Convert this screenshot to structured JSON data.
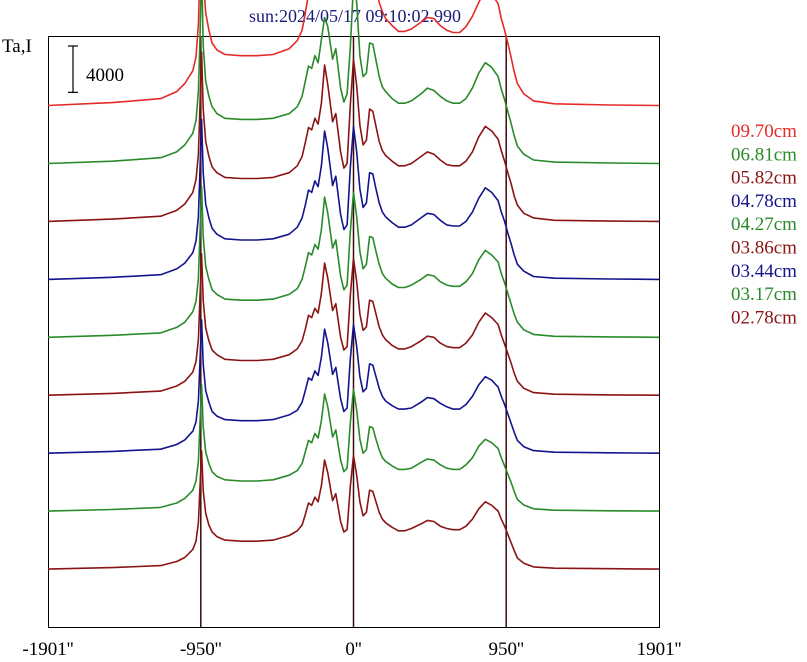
{
  "chart_data": {
    "type": "line",
    "title": "sun:2024/05/17 09:10:02.990",
    "ylabel": "Ta,I",
    "scale_bar_label": "4000",
    "scale_bar_value": 4000,
    "x_ticks": [
      {
        "value": -1901,
        "label": "-1901''"
      },
      {
        "value": -950,
        "label": "-950''"
      },
      {
        "value": 0,
        "label": "0''"
      },
      {
        "value": 950,
        "label": "950''"
      },
      {
        "value": 1901,
        "label": "1901''"
      }
    ],
    "xlim": [
      -1901,
      1901
    ],
    "ylim": [
      0,
      51000
    ],
    "vertical_markers": [
      -950,
      0,
      950
    ],
    "x": [
      -1901,
      -1500,
      -1200,
      -1100,
      -1050,
      -1000,
      -980,
      -965,
      -955,
      -945,
      -935,
      -920,
      -900,
      -880,
      -850,
      -800,
      -700,
      -600,
      -500,
      -400,
      -350,
      -320,
      -300,
      -280,
      -260,
      -240,
      -220,
      -200,
      -180,
      -160,
      -130,
      -110,
      -80,
      -60,
      -40,
      -20,
      0,
      20,
      40,
      60,
      80,
      100,
      120,
      140,
      160,
      180,
      200,
      240,
      280,
      320,
      360,
      420,
      460,
      500,
      540,
      580,
      620,
      660,
      700,
      740,
      780,
      820,
      860,
      900,
      920,
      940,
      960,
      980,
      1000,
      1020,
      1060,
      1120,
      1250,
      1600,
      1901
    ],
    "legend_position": "right",
    "series": [
      {
        "name": "09.70cm",
        "color": "#e52a2a",
        "offset": 45000,
        "values": [
          0,
          250,
          600,
          1200,
          1900,
          3000,
          4200,
          7000,
          12000,
          16000,
          11000,
          8000,
          6500,
          5400,
          4800,
          4400,
          4300,
          4300,
          4400,
          4900,
          5600,
          6500,
          8000,
          9600,
          9200,
          10600,
          9900,
          12200,
          13500,
          12400,
          10200,
          13000,
          10100,
          9800,
          10500,
          13000,
          17000,
          15500,
          11500,
          9200,
          9600,
          11800,
          11400,
          10200,
          8900,
          8100,
          7500,
          6900,
          6400,
          6400,
          6600,
          7200,
          7600,
          7500,
          6900,
          6500,
          6300,
          6300,
          6800,
          7700,
          8900,
          10000,
          9600,
          8800,
          7500,
          6500,
          5400,
          4200,
          2900,
          1900,
          1000,
          400,
          150,
          50,
          0
        ]
      },
      {
        "name": "06.81cm",
        "color": "#2a8a2a",
        "offset": 40000,
        "values": [
          0,
          200,
          500,
          1000,
          1600,
          2600,
          3700,
          6200,
          10800,
          17000,
          10200,
          7100,
          5800,
          4900,
          4300,
          3900,
          3800,
          3800,
          3900,
          4300,
          4900,
          5800,
          7100,
          8400,
          8200,
          9300,
          8700,
          10700,
          12600,
          11800,
          9000,
          9900,
          6500,
          5300,
          6000,
          10000,
          15500,
          13900,
          9300,
          7500,
          7800,
          10400,
          10300,
          8900,
          7500,
          6600,
          6200,
          5600,
          5200,
          5200,
          5400,
          6000,
          6500,
          6300,
          5800,
          5400,
          5200,
          5200,
          5600,
          6500,
          7800,
          8700,
          8300,
          7500,
          6400,
          5500,
          4500,
          3500,
          2400,
          1500,
          800,
          300,
          120,
          40,
          0
        ]
      },
      {
        "name": "05.82cm",
        "color": "#8a1414",
        "offset": 35000,
        "values": [
          0,
          200,
          450,
          950,
          1500,
          2500,
          3600,
          5800,
          10000,
          14600,
          9700,
          6900,
          5600,
          4700,
          4200,
          3800,
          3700,
          3700,
          3800,
          4200,
          4800,
          5600,
          6800,
          8100,
          7900,
          8900,
          8400,
          10200,
          13500,
          11800,
          8600,
          9300,
          6000,
          4600,
          5000,
          10000,
          14000,
          11700,
          8300,
          6600,
          7000,
          9700,
          9500,
          8200,
          6900,
          6100,
          5700,
          5200,
          4800,
          4800,
          5000,
          5600,
          6000,
          5800,
          5300,
          4900,
          4800,
          4800,
          5200,
          6000,
          7300,
          8200,
          7800,
          7100,
          6100,
          5200,
          4200,
          3300,
          2200,
          1400,
          700,
          300,
          100,
          30,
          0
        ]
      },
      {
        "name": "04.78cm",
        "color": "#14148c",
        "offset": 30000,
        "values": [
          0,
          180,
          400,
          900,
          1400,
          2300,
          3300,
          5400,
          9500,
          13800,
          9200,
          6500,
          5300,
          4400,
          3900,
          3500,
          3400,
          3400,
          3500,
          3900,
          4500,
          5300,
          6400,
          7700,
          7500,
          8500,
          8000,
          9800,
          12800,
          11300,
          8100,
          8900,
          5600,
          4300,
          4700,
          9600,
          13200,
          11000,
          7800,
          6200,
          6600,
          9200,
          9100,
          7800,
          6600,
          5800,
          5400,
          4900,
          4500,
          4500,
          4700,
          5300,
          5700,
          5600,
          5100,
          4700,
          4600,
          4600,
          5000,
          5800,
          7000,
          7900,
          7500,
          6800,
          5800,
          5000,
          4000,
          3100,
          2100,
          1300,
          700,
          250,
          100,
          30,
          0
        ]
      },
      {
        "name": "04.27cm",
        "color": "#2a8a2a",
        "offset": 25000,
        "values": [
          0,
          170,
          380,
          850,
          1300,
          2200,
          3100,
          5100,
          9000,
          13000,
          8700,
          6100,
          5000,
          4100,
          3700,
          3300,
          3200,
          3200,
          3300,
          3700,
          4200,
          5000,
          6100,
          7300,
          7100,
          8000,
          7600,
          9300,
          12100,
          10700,
          7700,
          8400,
          5300,
          4100,
          4500,
          9100,
          12500,
          10400,
          7400,
          5900,
          6300,
          8700,
          8600,
          7400,
          6300,
          5500,
          5100,
          4600,
          4300,
          4300,
          4500,
          5000,
          5400,
          5300,
          4800,
          4500,
          4400,
          4400,
          4800,
          5500,
          6700,
          7500,
          7100,
          6500,
          5500,
          4700,
          3800,
          2900,
          2000,
          1300,
          650,
          250,
          90,
          30,
          0
        ]
      },
      {
        "name": "03.86cm",
        "color": "#8a1414",
        "offset": 20000,
        "values": [
          0,
          160,
          360,
          800,
          1200,
          2000,
          2900,
          4800,
          8500,
          12200,
          8200,
          5800,
          4700,
          3900,
          3500,
          3100,
          3000,
          3000,
          3100,
          3500,
          4000,
          4700,
          5700,
          6900,
          6700,
          7500,
          7100,
          8800,
          11400,
          10100,
          7300,
          7900,
          5000,
          3900,
          4200,
          8600,
          11800,
          9800,
          7000,
          5600,
          5900,
          8200,
          8100,
          7000,
          5900,
          5200,
          4800,
          4300,
          4000,
          4000,
          4200,
          4700,
          5100,
          5000,
          4500,
          4200,
          4100,
          4100,
          4500,
          5200,
          6300,
          7100,
          6700,
          6100,
          5200,
          4400,
          3600,
          2800,
          1900,
          1200,
          600,
          230,
          90,
          30,
          0
        ]
      },
      {
        "name": "03.44cm",
        "color": "#14148c",
        "offset": 15000,
        "values": [
          0,
          150,
          340,
          750,
          1150,
          1900,
          2700,
          4500,
          8000,
          11500,
          7700,
          5400,
          4400,
          3600,
          3200,
          2900,
          2800,
          2800,
          2900,
          3300,
          3700,
          4400,
          5400,
          6500,
          6300,
          7100,
          6700,
          8300,
          10700,
          9500,
          6800,
          7400,
          4700,
          3600,
          3900,
          8100,
          11100,
          9200,
          6600,
          5300,
          5600,
          7700,
          7600,
          6600,
          5600,
          4900,
          4500,
          4100,
          3800,
          3800,
          3900,
          4400,
          4800,
          4700,
          4300,
          4000,
          3800,
          3800,
          4200,
          4900,
          5900,
          6600,
          6300,
          5700,
          4900,
          4200,
          3400,
          2600,
          1800,
          1100,
          560,
          220,
          80,
          30,
          0
        ]
      },
      {
        "name": "03.17cm",
        "color": "#2a8a2a",
        "offset": 10000,
        "values": [
          0,
          140,
          320,
          700,
          1100,
          1800,
          2600,
          4300,
          7600,
          10900,
          7300,
          5100,
          4100,
          3400,
          3000,
          2700,
          2600,
          2600,
          2700,
          3100,
          3500,
          4100,
          5100,
          6100,
          5900,
          6700,
          6300,
          7800,
          10100,
          9000,
          6400,
          7000,
          4400,
          3400,
          3700,
          7600,
          10500,
          8700,
          6200,
          5000,
          5300,
          7300,
          7200,
          6200,
          5300,
          4600,
          4300,
          3900,
          3600,
          3600,
          3700,
          4200,
          4500,
          4400,
          4000,
          3700,
          3600,
          3600,
          4000,
          4600,
          5600,
          6200,
          5900,
          5400,
          4600,
          3900,
          3200,
          2500,
          1700,
          1000,
          530,
          200,
          80,
          30,
          0
        ]
      },
      {
        "name": "02.78cm",
        "color": "#8a1414",
        "offset": 5000,
        "values": [
          0,
          130,
          300,
          650,
          1000,
          1700,
          2400,
          4000,
          7100,
          10200,
          6800,
          4800,
          3800,
          3200,
          2800,
          2500,
          2400,
          2400,
          2500,
          2900,
          3300,
          3800,
          4700,
          5700,
          5500,
          6200,
          5800,
          7200,
          9400,
          8300,
          5900,
          6500,
          4100,
          3200,
          3400,
          7100,
          9800,
          8100,
          5800,
          4600,
          4900,
          6800,
          6700,
          5800,
          4900,
          4300,
          4000,
          3600,
          3300,
          3300,
          3500,
          3900,
          4200,
          4100,
          3700,
          3500,
          3400,
          3400,
          3700,
          4300,
          5200,
          5800,
          5500,
          5000,
          4300,
          3700,
          3000,
          2300,
          1600,
          950,
          500,
          190,
          70,
          30,
          0
        ]
      }
    ]
  }
}
